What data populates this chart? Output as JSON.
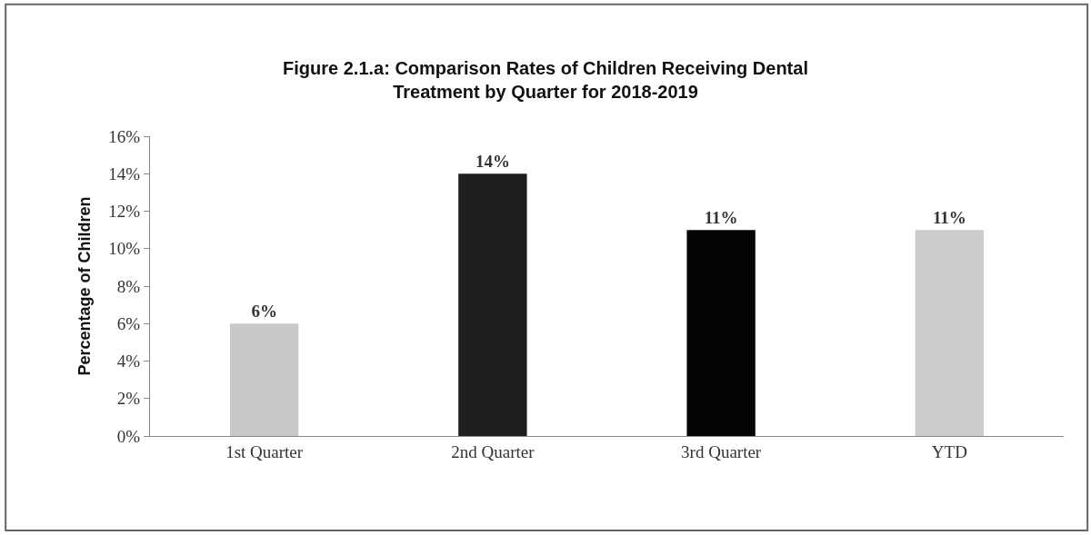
{
  "chart_data": {
    "type": "bar",
    "title": "Figure 2.1.a: Comparison Rates of Children Receiving Dental\nTreatment by Quarter for 2018-2019",
    "ylabel": "Percentage of Children",
    "categories": [
      "1st Quarter",
      "2nd Quarter",
      "3rd Quarter",
      "YTD"
    ],
    "values": [
      6,
      14,
      11,
      11
    ],
    "colors": [
      "#c8c8c8",
      "#1e1e1e",
      "#050505",
      "#cbcbcb"
    ],
    "value_labels": [
      "6%",
      "14%",
      "11%",
      "11%"
    ],
    "ylim": [
      0,
      16
    ],
    "yticks": [
      {
        "value": 0,
        "label": "0%"
      },
      {
        "value": 2,
        "label": "2%"
      },
      {
        "value": 4,
        "label": "4%"
      },
      {
        "value": 6,
        "label": "6%"
      },
      {
        "value": 8,
        "label": "8%"
      },
      {
        "value": 10,
        "label": "10%"
      },
      {
        "value": 12,
        "label": "12%"
      },
      {
        "value": 14,
        "label": "14%"
      },
      {
        "value": 16,
        "label": "16%"
      }
    ],
    "legend": false
  }
}
